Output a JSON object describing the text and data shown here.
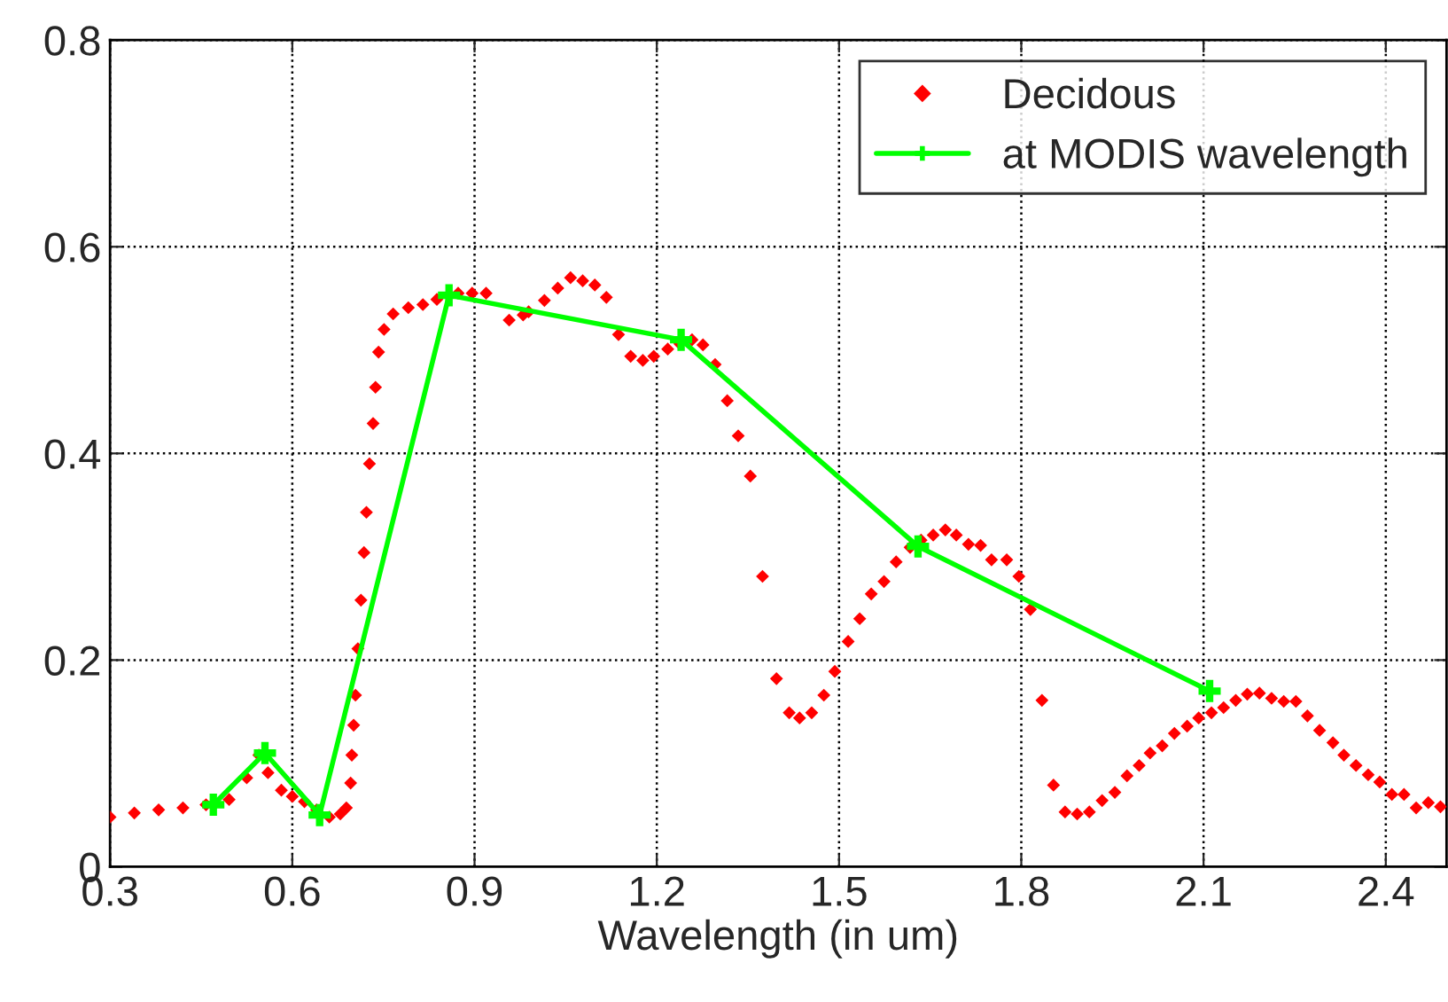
{
  "chart_data": {
    "type": "scatter",
    "xlabel": "Wavelength (in um)",
    "xlim": [
      0.3,
      2.5
    ],
    "ylim": [
      0,
      0.8
    ],
    "xticks": [
      0.3,
      0.6,
      0.9,
      1.2,
      1.5,
      1.8,
      2.1,
      2.4
    ],
    "yticks": [
      0,
      0.2,
      0.4,
      0.6,
      0.8
    ],
    "grid": true,
    "legend": "top right",
    "series": [
      {
        "name": "Decidous",
        "marker": "diamond",
        "color": "#ff0000",
        "x": [
          0.3,
          0.34,
          0.38,
          0.42,
          0.458,
          0.496,
          0.525,
          0.545,
          0.56,
          0.582,
          0.6,
          0.62,
          0.64,
          0.661,
          0.679,
          0.689,
          0.696,
          0.698,
          0.701,
          0.704,
          0.708,
          0.713,
          0.718,
          0.722,
          0.727,
          0.733,
          0.737,
          0.742,
          0.751,
          0.766,
          0.791,
          0.815,
          0.838,
          0.873,
          0.896,
          0.919,
          0.957,
          0.98,
          0.989,
          1.015,
          1.037,
          1.058,
          1.078,
          1.098,
          1.117,
          1.137,
          1.157,
          1.177,
          1.195,
          1.218,
          1.238,
          1.258,
          1.276,
          1.296,
          1.316,
          1.334,
          1.354,
          1.374,
          1.397,
          1.418,
          1.435,
          1.455,
          1.475,
          1.493,
          1.515,
          1.534,
          1.553,
          1.574,
          1.594,
          1.617,
          1.635,
          1.655,
          1.675,
          1.693,
          1.713,
          1.733,
          1.751,
          1.776,
          1.796,
          1.815,
          1.834,
          1.853,
          1.872,
          1.892,
          1.912,
          1.933,
          1.954,
          1.974,
          1.994,
          2.012,
          2.032,
          2.052,
          2.073,
          2.092,
          2.113,
          2.133,
          2.153,
          2.172,
          2.192,
          2.212,
          2.232,
          2.252,
          2.271,
          2.291,
          2.313,
          2.331,
          2.351,
          2.371,
          2.39,
          2.41,
          2.43,
          2.45,
          2.47,
          2.49
        ],
        "values": [
          0.048,
          0.052,
          0.055,
          0.057,
          0.06,
          0.065,
          0.086,
          0.108,
          0.091,
          0.074,
          0.068,
          0.063,
          0.055,
          0.048,
          0.051,
          0.057,
          0.081,
          0.108,
          0.137,
          0.166,
          0.211,
          0.258,
          0.304,
          0.343,
          0.39,
          0.429,
          0.464,
          0.498,
          0.52,
          0.535,
          0.541,
          0.544,
          0.549,
          0.555,
          0.555,
          0.555,
          0.529,
          0.534,
          0.537,
          0.548,
          0.56,
          0.57,
          0.567,
          0.563,
          0.551,
          0.515,
          0.494,
          0.49,
          0.494,
          0.501,
          0.506,
          0.51,
          0.505,
          0.486,
          0.451,
          0.417,
          0.378,
          0.281,
          0.182,
          0.149,
          0.144,
          0.149,
          0.166,
          0.189,
          0.218,
          0.24,
          0.264,
          0.276,
          0.295,
          0.309,
          0.316,
          0.321,
          0.326,
          0.321,
          0.312,
          0.311,
          0.297,
          0.297,
          0.281,
          0.249,
          0.161,
          0.079,
          0.053,
          0.051,
          0.053,
          0.064,
          0.072,
          0.088,
          0.098,
          0.11,
          0.117,
          0.129,
          0.136,
          0.144,
          0.149,
          0.154,
          0.161,
          0.167,
          0.168,
          0.163,
          0.16,
          0.16,
          0.146,
          0.132,
          0.12,
          0.108,
          0.098,
          0.089,
          0.082,
          0.07,
          0.07,
          0.057,
          0.062,
          0.058
        ]
      },
      {
        "name": "at MODIS wavelength",
        "type": "line",
        "marker": "cross",
        "color": "#00ff00",
        "x": [
          0.47,
          0.555,
          0.645,
          0.858,
          1.24,
          1.63,
          2.11
        ],
        "values": [
          0.06,
          0.11,
          0.05,
          0.553,
          0.51,
          0.31,
          0.17
        ]
      }
    ]
  }
}
